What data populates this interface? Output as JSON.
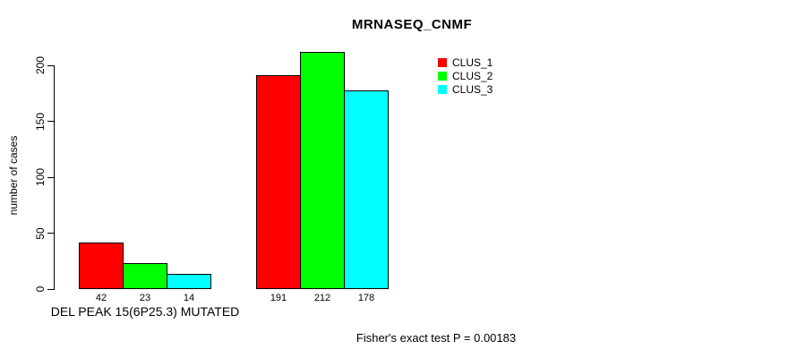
{
  "chart_data": {
    "type": "bar",
    "title": "MRNASEQ_CNMF",
    "xlabel": "",
    "ylabel": "number of cases",
    "ylim": [
      0,
      200
    ],
    "yticks": [
      0,
      50,
      100,
      150,
      200
    ],
    "grid": false,
    "legend_position": "top-right",
    "categories": [
      "DEL PEAK 15(6P25.3) MUTATED",
      ""
    ],
    "series": [
      {
        "name": "CLUS_1",
        "color": "#FF0000",
        "values": [
          42,
          191
        ]
      },
      {
        "name": "CLUS_2",
        "color": "#00FF00",
        "values": [
          23,
          212
        ]
      },
      {
        "name": "CLUS_3",
        "color": "#00FFFF",
        "values": [
          14,
          178
        ]
      }
    ],
    "bar_value_labels": [
      [
        42,
        23,
        14
      ],
      [
        191,
        212,
        178
      ]
    ],
    "annotation": "Fisher's exact test P = 0.00183",
    "colors": {
      "axis": "#000000",
      "background": "#FFFFFF",
      "text": "#000000"
    }
  }
}
